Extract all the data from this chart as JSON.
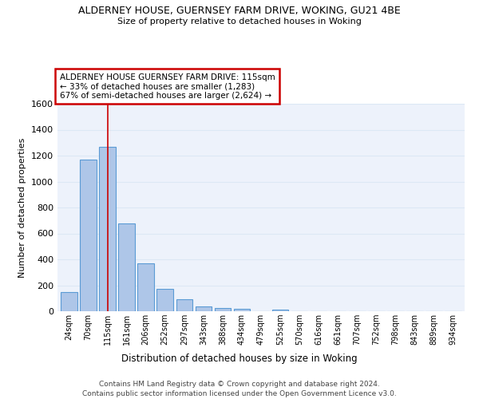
{
  "title": "ALDERNEY HOUSE, GUERNSEY FARM DRIVE, WOKING, GU21 4BE",
  "subtitle": "Size of property relative to detached houses in Woking",
  "xlabel": "Distribution of detached houses by size in Woking",
  "ylabel": "Number of detached properties",
  "bar_labels": [
    "24sqm",
    "70sqm",
    "115sqm",
    "161sqm",
    "206sqm",
    "252sqm",
    "297sqm",
    "343sqm",
    "388sqm",
    "434sqm",
    "479sqm",
    "525sqm",
    "570sqm",
    "616sqm",
    "661sqm",
    "707sqm",
    "752sqm",
    "798sqm",
    "843sqm",
    "889sqm",
    "934sqm"
  ],
  "bar_values": [
    150,
    1170,
    1265,
    675,
    370,
    170,
    90,
    35,
    25,
    20,
    0,
    15,
    0,
    0,
    0,
    0,
    0,
    0,
    0,
    0,
    0
  ],
  "bar_color": "#aec6e8",
  "bar_edge_color": "#5b9bd5",
  "red_line_index": 2,
  "annotation_line1": "ALDERNEY HOUSE GUERNSEY FARM DRIVE: 115sqm",
  "annotation_line2": "← 33% of detached houses are smaller (1,283)",
  "annotation_line3": "67% of semi-detached houses are larger (2,624) →",
  "annotation_box_color": "#ffffff",
  "annotation_border_color": "#cc0000",
  "ylim": [
    0,
    1600
  ],
  "yticks": [
    0,
    200,
    400,
    600,
    800,
    1000,
    1200,
    1400,
    1600
  ],
  "grid_color": "#dce8f5",
  "background_color": "#edf2fb",
  "footer_line1": "Contains HM Land Registry data © Crown copyright and database right 2024.",
  "footer_line2": "Contains public sector information licensed under the Open Government Licence v3.0."
}
